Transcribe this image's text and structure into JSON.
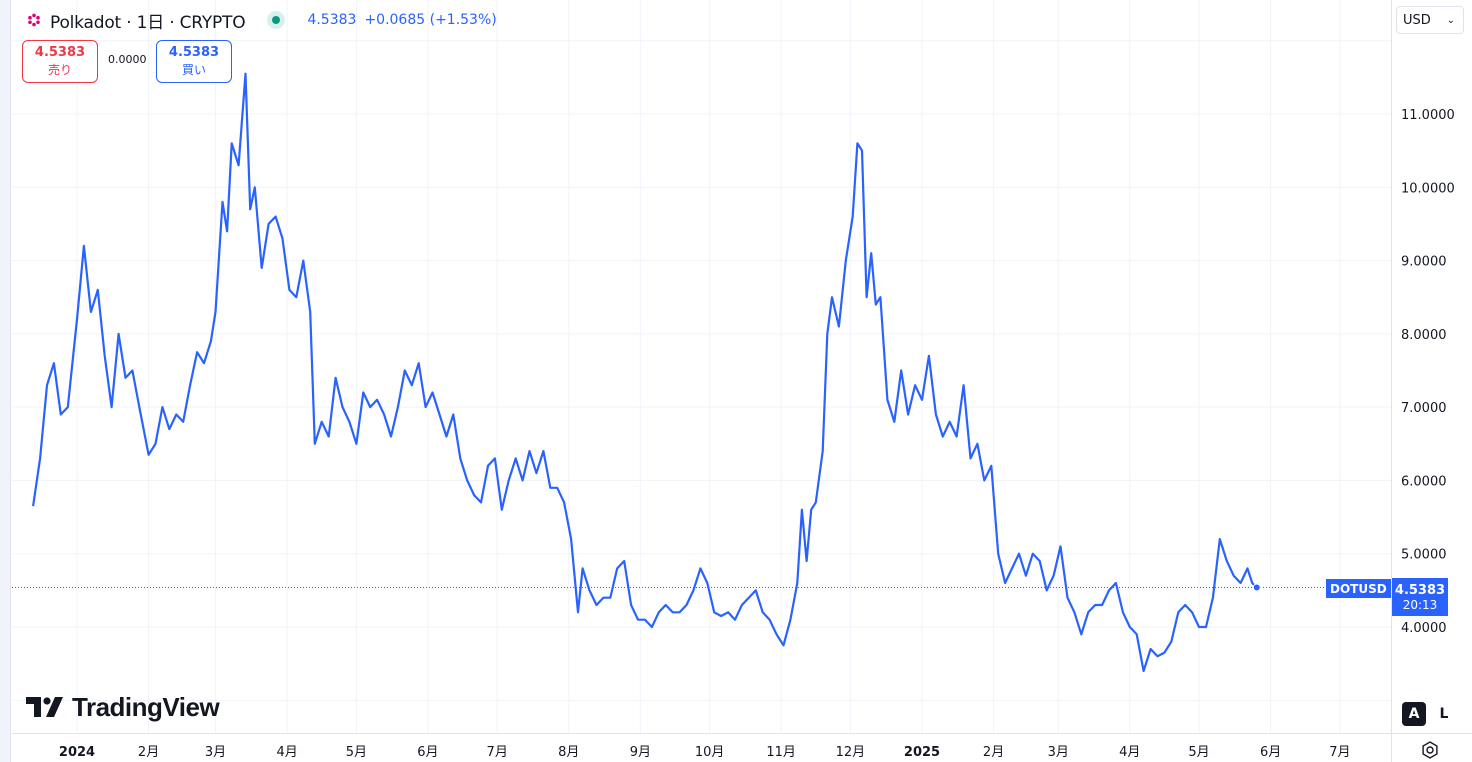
{
  "header": {
    "title": "Polkadot · 1日 · CRYPTO",
    "price": "4.5383",
    "change": "+0.0685 (+1.53%)"
  },
  "trade": {
    "sell_price": "4.5383",
    "sell_label": "売り",
    "spread": "0.0000",
    "buy_price": "4.5383",
    "buy_label": "買い"
  },
  "currency": {
    "value": "USD"
  },
  "symbol_tag": "DOTUSD",
  "last_price": {
    "value": "4.5383",
    "countdown": "20:13"
  },
  "scale_buttons": {
    "auto": "A",
    "log": "L"
  },
  "brand": "TradingView",
  "colors": {
    "line": "#2962ff",
    "grid": "#f0f3fa",
    "sell": "#f23645",
    "buy": "#2962ff",
    "status": "#089981"
  },
  "icons": {
    "logo": "polkadot-logo-icon",
    "settings": "gear-icon"
  },
  "chart_data": {
    "type": "line",
    "y_tick_labels": [
      "11.0000",
      "10.0000",
      "9.0000",
      "8.0000",
      "7.0000",
      "6.0000",
      "5.0000",
      "4.0000"
    ],
    "y_ticks": [
      11,
      10,
      9,
      8,
      7,
      6,
      5,
      4
    ],
    "ylim": [
      3.0,
      12.0
    ],
    "x_tick_labels": [
      "2024",
      "2月",
      "3月",
      "4月",
      "5月",
      "6月",
      "7月",
      "8月",
      "9月",
      "10月",
      "11月",
      "12月",
      "2025",
      "2月",
      "3月",
      "4月",
      "5月",
      "6月",
      "7月"
    ],
    "x_tick_dates": [
      "2024-01-01",
      "2024-02-01",
      "2024-03-01",
      "2024-04-01",
      "2024-05-01",
      "2024-06-01",
      "2024-07-01",
      "2024-08-01",
      "2024-09-01",
      "2024-10-01",
      "2024-11-01",
      "2024-12-01",
      "2025-01-01",
      "2025-02-01",
      "2025-03-01",
      "2025-04-01",
      "2025-05-01",
      "2025-06-01",
      "2025-07-01"
    ],
    "last_value": 4.5383,
    "series": [
      {
        "color": "#2962ff",
        "points": [
          [
            "2023-12-13",
            5.65
          ],
          [
            "2023-12-16",
            6.3
          ],
          [
            "2023-12-19",
            7.3
          ],
          [
            "2023-12-22",
            7.6
          ],
          [
            "2023-12-25",
            6.9
          ],
          [
            "2023-12-28",
            7.0
          ],
          [
            "2024-01-01",
            8.2
          ],
          [
            "2024-01-04",
            9.2
          ],
          [
            "2024-01-07",
            8.3
          ],
          [
            "2024-01-10",
            8.6
          ],
          [
            "2024-01-13",
            7.7
          ],
          [
            "2024-01-16",
            7.0
          ],
          [
            "2024-01-19",
            8.0
          ],
          [
            "2024-01-22",
            7.4
          ],
          [
            "2024-01-25",
            7.5
          ],
          [
            "2024-01-28",
            7.0
          ],
          [
            "2024-02-01",
            6.35
          ],
          [
            "2024-02-04",
            6.5
          ],
          [
            "2024-02-07",
            7.0
          ],
          [
            "2024-02-10",
            6.7
          ],
          [
            "2024-02-13",
            6.9
          ],
          [
            "2024-02-16",
            6.8
          ],
          [
            "2024-02-19",
            7.3
          ],
          [
            "2024-02-22",
            7.75
          ],
          [
            "2024-02-25",
            7.6
          ],
          [
            "2024-02-28",
            7.9
          ],
          [
            "2024-03-01",
            8.3
          ],
          [
            "2024-03-04",
            9.8
          ],
          [
            "2024-03-06",
            9.4
          ],
          [
            "2024-03-08",
            10.6
          ],
          [
            "2024-03-11",
            10.3
          ],
          [
            "2024-03-14",
            11.55
          ],
          [
            "2024-03-16",
            9.7
          ],
          [
            "2024-03-18",
            10.0
          ],
          [
            "2024-03-21",
            8.9
          ],
          [
            "2024-03-24",
            9.5
          ],
          [
            "2024-03-27",
            9.6
          ],
          [
            "2024-03-30",
            9.3
          ],
          [
            "2024-04-02",
            8.6
          ],
          [
            "2024-04-05",
            8.5
          ],
          [
            "2024-04-08",
            9.0
          ],
          [
            "2024-04-11",
            8.3
          ],
          [
            "2024-04-13",
            6.5
          ],
          [
            "2024-04-16",
            6.8
          ],
          [
            "2024-04-19",
            6.6
          ],
          [
            "2024-04-22",
            7.4
          ],
          [
            "2024-04-25",
            7.0
          ],
          [
            "2024-04-28",
            6.8
          ],
          [
            "2024-05-01",
            6.5
          ],
          [
            "2024-05-04",
            7.2
          ],
          [
            "2024-05-07",
            7.0
          ],
          [
            "2024-05-10",
            7.1
          ],
          [
            "2024-05-13",
            6.9
          ],
          [
            "2024-05-16",
            6.6
          ],
          [
            "2024-05-19",
            7.0
          ],
          [
            "2024-05-22",
            7.5
          ],
          [
            "2024-05-25",
            7.3
          ],
          [
            "2024-05-28",
            7.6
          ],
          [
            "2024-05-31",
            7.0
          ],
          [
            "2024-06-03",
            7.2
          ],
          [
            "2024-06-06",
            6.9
          ],
          [
            "2024-06-09",
            6.6
          ],
          [
            "2024-06-12",
            6.9
          ],
          [
            "2024-06-15",
            6.3
          ],
          [
            "2024-06-18",
            6.0
          ],
          [
            "2024-06-21",
            5.8
          ],
          [
            "2024-06-24",
            5.7
          ],
          [
            "2024-06-27",
            6.2
          ],
          [
            "2024-06-30",
            6.3
          ],
          [
            "2024-07-03",
            5.6
          ],
          [
            "2024-07-06",
            6.0
          ],
          [
            "2024-07-09",
            6.3
          ],
          [
            "2024-07-12",
            6.0
          ],
          [
            "2024-07-15",
            6.4
          ],
          [
            "2024-07-18",
            6.1
          ],
          [
            "2024-07-21",
            6.4
          ],
          [
            "2024-07-24",
            5.9
          ],
          [
            "2024-07-27",
            5.9
          ],
          [
            "2024-07-30",
            5.7
          ],
          [
            "2024-08-02",
            5.2
          ],
          [
            "2024-08-05",
            4.2
          ],
          [
            "2024-08-07",
            4.8
          ],
          [
            "2024-08-10",
            4.5
          ],
          [
            "2024-08-13",
            4.3
          ],
          [
            "2024-08-16",
            4.4
          ],
          [
            "2024-08-19",
            4.4
          ],
          [
            "2024-08-22",
            4.8
          ],
          [
            "2024-08-25",
            4.9
          ],
          [
            "2024-08-28",
            4.3
          ],
          [
            "2024-08-31",
            4.1
          ],
          [
            "2024-09-03",
            4.1
          ],
          [
            "2024-09-06",
            4.0
          ],
          [
            "2024-09-09",
            4.2
          ],
          [
            "2024-09-12",
            4.3
          ],
          [
            "2024-09-15",
            4.2
          ],
          [
            "2024-09-18",
            4.2
          ],
          [
            "2024-09-21",
            4.3
          ],
          [
            "2024-09-24",
            4.5
          ],
          [
            "2024-09-27",
            4.8
          ],
          [
            "2024-09-30",
            4.6
          ],
          [
            "2024-10-03",
            4.2
          ],
          [
            "2024-10-06",
            4.15
          ],
          [
            "2024-10-09",
            4.2
          ],
          [
            "2024-10-12",
            4.1
          ],
          [
            "2024-10-15",
            4.3
          ],
          [
            "2024-10-18",
            4.4
          ],
          [
            "2024-10-21",
            4.5
          ],
          [
            "2024-10-24",
            4.2
          ],
          [
            "2024-10-27",
            4.1
          ],
          [
            "2024-10-30",
            3.9
          ],
          [
            "2024-11-02",
            3.75
          ],
          [
            "2024-11-05",
            4.1
          ],
          [
            "2024-11-08",
            4.6
          ],
          [
            "2024-11-10",
            5.6
          ],
          [
            "2024-11-12",
            4.9
          ],
          [
            "2024-11-14",
            5.6
          ],
          [
            "2024-11-16",
            5.7
          ],
          [
            "2024-11-19",
            6.4
          ],
          [
            "2024-11-21",
            8.0
          ],
          [
            "2024-11-23",
            8.5
          ],
          [
            "2024-11-26",
            8.1
          ],
          [
            "2024-11-29",
            9.0
          ],
          [
            "2024-12-02",
            9.6
          ],
          [
            "2024-12-04",
            10.6
          ],
          [
            "2024-12-06",
            10.5
          ],
          [
            "2024-12-08",
            8.5
          ],
          [
            "2024-12-10",
            9.1
          ],
          [
            "2024-12-12",
            8.4
          ],
          [
            "2024-12-14",
            8.5
          ],
          [
            "2024-12-17",
            7.1
          ],
          [
            "2024-12-20",
            6.8
          ],
          [
            "2024-12-23",
            7.5
          ],
          [
            "2024-12-26",
            6.9
          ],
          [
            "2024-12-29",
            7.3
          ],
          [
            "2025-01-01",
            7.1
          ],
          [
            "2025-01-04",
            7.7
          ],
          [
            "2025-01-07",
            6.9
          ],
          [
            "2025-01-10",
            6.6
          ],
          [
            "2025-01-13",
            6.8
          ],
          [
            "2025-01-16",
            6.6
          ],
          [
            "2025-01-19",
            7.3
          ],
          [
            "2025-01-22",
            6.3
          ],
          [
            "2025-01-25",
            6.5
          ],
          [
            "2025-01-28",
            6.0
          ],
          [
            "2025-01-31",
            6.2
          ],
          [
            "2025-02-03",
            5.0
          ],
          [
            "2025-02-06",
            4.6
          ],
          [
            "2025-02-09",
            4.8
          ],
          [
            "2025-02-12",
            5.0
          ],
          [
            "2025-02-15",
            4.7
          ],
          [
            "2025-02-18",
            5.0
          ],
          [
            "2025-02-21",
            4.9
          ],
          [
            "2025-02-24",
            4.5
          ],
          [
            "2025-02-27",
            4.7
          ],
          [
            "2025-03-02",
            5.1
          ],
          [
            "2025-03-05",
            4.4
          ],
          [
            "2025-03-08",
            4.2
          ],
          [
            "2025-03-11",
            3.9
          ],
          [
            "2025-03-14",
            4.2
          ],
          [
            "2025-03-17",
            4.3
          ],
          [
            "2025-03-20",
            4.3
          ],
          [
            "2025-03-23",
            4.5
          ],
          [
            "2025-03-26",
            4.6
          ],
          [
            "2025-03-29",
            4.2
          ],
          [
            "2025-04-01",
            4.0
          ],
          [
            "2025-04-04",
            3.9
          ],
          [
            "2025-04-07",
            3.4
          ],
          [
            "2025-04-10",
            3.7
          ],
          [
            "2025-04-13",
            3.6
          ],
          [
            "2025-04-16",
            3.65
          ],
          [
            "2025-04-19",
            3.8
          ],
          [
            "2025-04-22",
            4.2
          ],
          [
            "2025-04-25",
            4.3
          ],
          [
            "2025-04-28",
            4.2
          ],
          [
            "2025-05-01",
            4.0
          ],
          [
            "2025-05-04",
            4.0
          ],
          [
            "2025-05-07",
            4.4
          ],
          [
            "2025-05-10",
            5.2
          ],
          [
            "2025-05-13",
            4.9
          ],
          [
            "2025-05-16",
            4.7
          ],
          [
            "2025-05-19",
            4.6
          ],
          [
            "2025-05-22",
            4.8
          ],
          [
            "2025-05-24",
            4.6
          ],
          [
            "2025-05-26",
            4.5383
          ]
        ]
      }
    ]
  }
}
